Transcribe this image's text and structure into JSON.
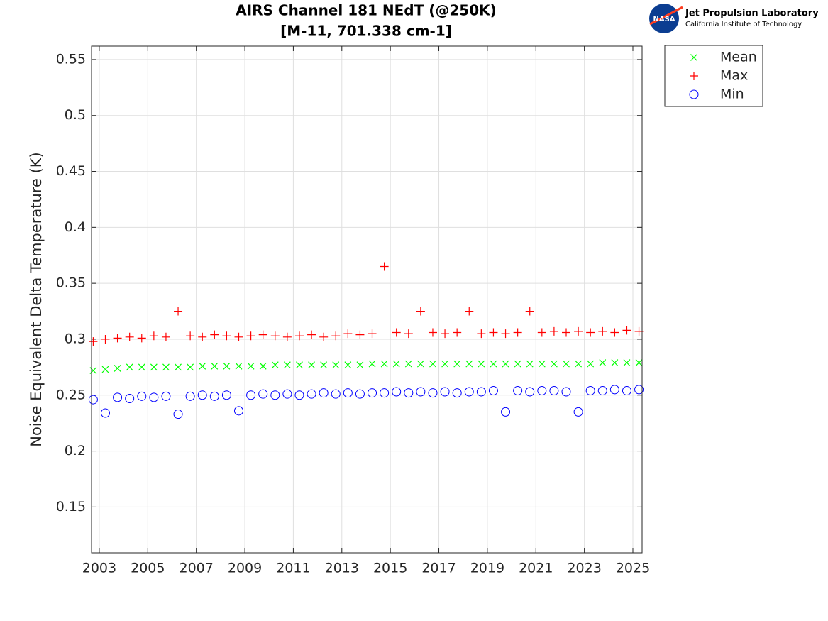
{
  "chart_data": {
    "type": "scatter",
    "title": "AIRS Channel 181 NEdT (@250K)",
    "subtitle": "[M-11, 701.338 cm-1]",
    "ylabel": "Noise Equivalent Delta Temperature (K)",
    "xlim": [
      2002.68,
      2025.38
    ],
    "ylim": [
      0.109,
      0.562
    ],
    "xticks": [
      2003,
      2005,
      2007,
      2009,
      2011,
      2013,
      2015,
      2017,
      2019,
      2021,
      2023,
      2025
    ],
    "yticks": [
      0.15,
      0.2,
      0.25,
      0.3,
      0.35,
      0.4,
      0.45,
      0.5,
      0.55
    ],
    "grid": true,
    "legend": "outside-top-right",
    "x": [
      2002.75,
      2003.25,
      2003.75,
      2004.25,
      2004.75,
      2005.25,
      2005.75,
      2006.25,
      2006.75,
      2007.25,
      2007.75,
      2008.25,
      2008.75,
      2009.25,
      2009.75,
      2010.25,
      2010.75,
      2011.25,
      2011.75,
      2012.25,
      2012.75,
      2013.25,
      2013.75,
      2014.25,
      2014.75,
      2015.25,
      2015.75,
      2016.25,
      2016.75,
      2017.25,
      2017.75,
      2018.25,
      2018.75,
      2019.25,
      2019.75,
      2020.25,
      2020.75,
      2021.25,
      2021.75,
      2022.25,
      2022.75,
      2023.25,
      2023.75,
      2024.25,
      2024.75,
      2025.25
    ],
    "series": [
      {
        "name": "Mean",
        "color": "#00ff00",
        "marker": "x",
        "values": [
          0.272,
          0.273,
          0.274,
          0.275,
          0.275,
          0.275,
          0.275,
          0.275,
          0.275,
          0.276,
          0.276,
          0.276,
          0.276,
          0.276,
          0.276,
          0.277,
          0.277,
          0.277,
          0.277,
          0.277,
          0.277,
          0.277,
          0.277,
          0.278,
          0.278,
          0.278,
          0.278,
          0.278,
          0.278,
          0.278,
          0.278,
          0.278,
          0.278,
          0.278,
          0.278,
          0.278,
          0.278,
          0.278,
          0.278,
          0.278,
          0.278,
          0.278,
          0.279,
          0.279,
          0.279,
          0.279
        ]
      },
      {
        "name": "Max",
        "color": "#ff0000",
        "marker": "+",
        "values": [
          0.298,
          0.3,
          0.301,
          0.302,
          0.301,
          0.303,
          0.302,
          0.325,
          0.303,
          0.302,
          0.304,
          0.303,
          0.302,
          0.303,
          0.304,
          0.303,
          0.302,
          0.303,
          0.304,
          0.302,
          0.303,
          0.305,
          0.304,
          0.305,
          0.365,
          0.306,
          0.305,
          0.325,
          0.306,
          0.305,
          0.306,
          0.325,
          0.305,
          0.306,
          0.305,
          0.306,
          0.325,
          0.306,
          0.307,
          0.306,
          0.307,
          0.306,
          0.307,
          0.306,
          0.308,
          0.307
        ]
      },
      {
        "name": "Min",
        "color": "#0000ff",
        "marker": "o",
        "values": [
          0.246,
          0.234,
          0.248,
          0.247,
          0.249,
          0.248,
          0.249,
          0.233,
          0.249,
          0.25,
          0.249,
          0.25,
          0.236,
          0.25,
          0.251,
          0.25,
          0.251,
          0.25,
          0.251,
          0.252,
          0.251,
          0.252,
          0.251,
          0.252,
          0.252,
          0.253,
          0.252,
          0.253,
          0.252,
          0.253,
          0.252,
          0.253,
          0.253,
          0.254,
          0.235,
          0.254,
          0.253,
          0.254,
          0.254,
          0.253,
          0.235,
          0.254,
          0.254,
          0.255,
          0.254,
          0.255
        ]
      }
    ]
  },
  "logo": {
    "badge": "NASA",
    "name": "Jet Propulsion Laboratory",
    "institute": "California Institute of Technology"
  }
}
